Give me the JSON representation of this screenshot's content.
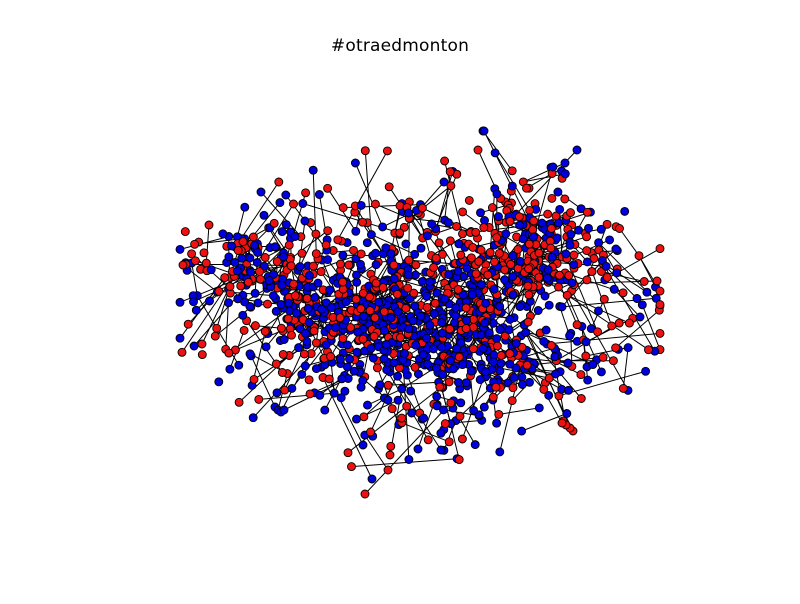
{
  "title": "#otraedmonton",
  "graph": {
    "type": "network",
    "node_colors": {
      "red": "#ee1111",
      "blue": "#0000dd"
    },
    "node_outline": "#000000",
    "edge_color": "#000000",
    "background": "#ffffff",
    "axes_visible": false
  }
}
